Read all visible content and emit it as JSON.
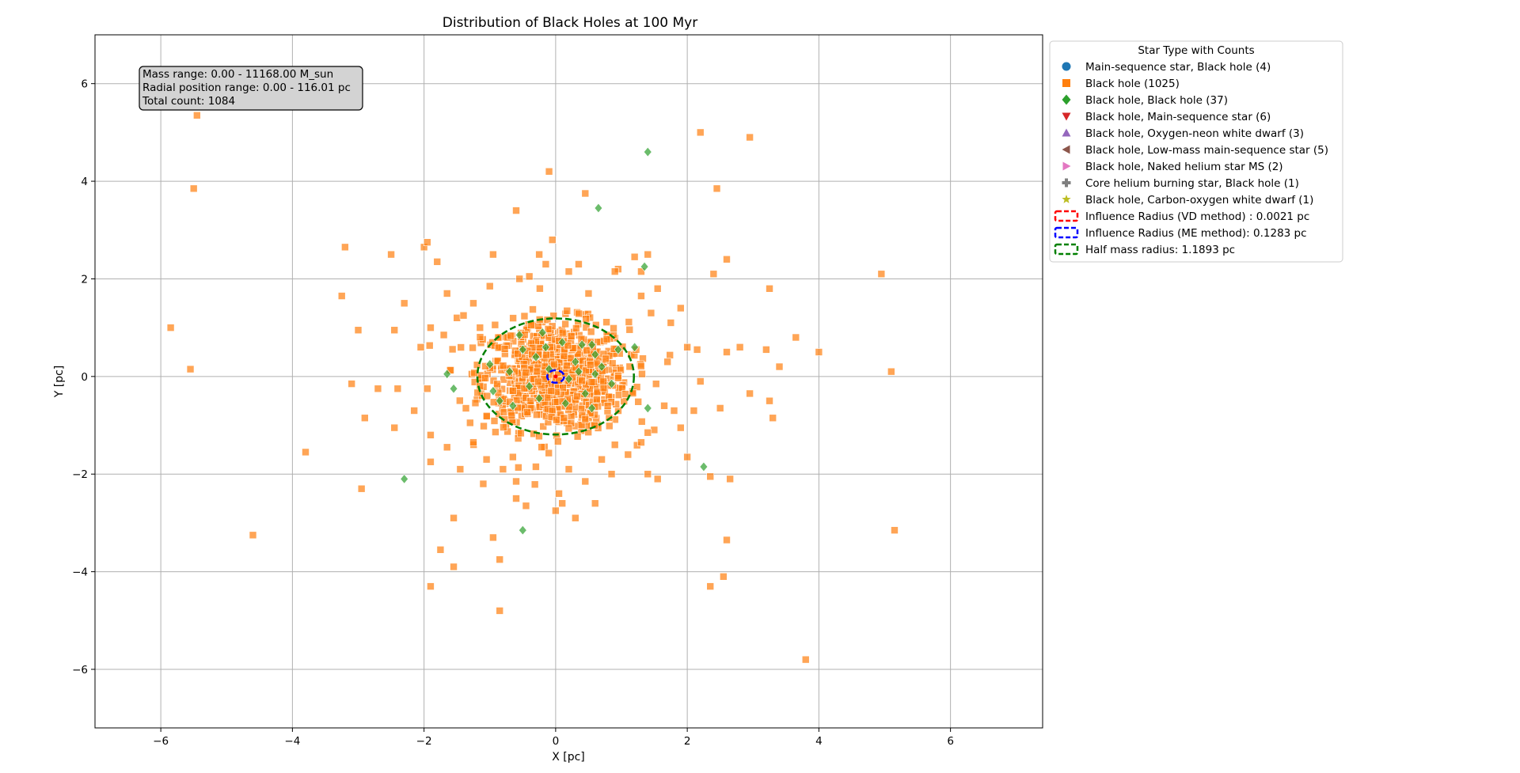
{
  "chart_data": {
    "type": "scatter",
    "title": "Distribution of Black Holes at 100 Myr",
    "xlabel": "X [pc]",
    "ylabel": "Y [pc]",
    "xlim": [
      -7.0,
      7.4
    ],
    "ylim": [
      -7.2,
      7.0
    ],
    "xticks": [
      -6,
      -4,
      -2,
      0,
      2,
      4,
      6
    ],
    "yticks": [
      -6,
      -4,
      -2,
      0,
      2,
      4,
      6
    ],
    "xtick_labels": [
      "−6",
      "−4",
      "−2",
      "0",
      "2",
      "4",
      "6"
    ],
    "ytick_labels": [
      "−6",
      "−4",
      "−2",
      "0",
      "2",
      "4",
      "6"
    ],
    "grid": true,
    "annotation": {
      "lines": [
        "Mass range: 0.00 - 11168.00 M_sun",
        "Radial position range: 0.00 - 116.01 pc",
        "Total count: 1084"
      ]
    },
    "legend": {
      "title": "Star Type with Counts",
      "placement": "outside upper right",
      "entries": [
        {
          "label": "Main-sequence star, Black hole (4)",
          "marker": "circle",
          "color": "#1f77b4"
        },
        {
          "label": "Black hole (1025)",
          "marker": "square",
          "color": "#ff7f0e"
        },
        {
          "label": "Black hole, Black hole (37)",
          "marker": "diamond",
          "color": "#2ca02c"
        },
        {
          "label": "Black hole, Main-sequence star (6)",
          "marker": "triangle-down",
          "color": "#d62728"
        },
        {
          "label": "Black hole, Oxygen-neon white dwarf (3)",
          "marker": "triangle-up",
          "color": "#9467bd"
        },
        {
          "label": "Black hole, Low-mass main-sequence star (5)",
          "marker": "triangle-left",
          "color": "#8c564b"
        },
        {
          "label": "Black hole, Naked helium star MS (2)",
          "marker": "triangle-right",
          "color": "#e377c2"
        },
        {
          "label": "Core helium burning star, Black hole (1)",
          "marker": "plus",
          "color": "#7f7f7f"
        },
        {
          "label": "Black hole, Carbon-oxygen white dwarf (1)",
          "marker": "star",
          "color": "#bcbd22"
        },
        {
          "label": "Influence Radius (VD method) : 0.0021 pc",
          "marker": "dashed-box",
          "color": "#ff0000"
        },
        {
          "label": "Influence Radius (ME method): 0.1283 pc",
          "marker": "dashed-box",
          "color": "#0000ff"
        },
        {
          "label": "Half mass radius: 1.1893 pc",
          "marker": "dashed-box",
          "color": "#008000"
        }
      ]
    },
    "circles": [
      {
        "name": "Influence Radius (VD method)",
        "radius": 0.0021,
        "color": "#ff0000"
      },
      {
        "name": "Influence Radius (ME method)",
        "radius": 0.1283,
        "color": "#0000ff"
      },
      {
        "name": "Half mass radius",
        "radius": 1.1893,
        "color": "#008000"
      }
    ],
    "series": [
      {
        "name": "Black hole (1025)",
        "marker": "square",
        "color": "#ff7f0e",
        "cluster": {
          "count": 900,
          "sigma_x": 0.55,
          "sigma_y": 0.55
        },
        "points": [
          [
            -5.45,
            5.35
          ],
          [
            -5.5,
            3.85
          ],
          [
            -5.85,
            1.0
          ],
          [
            -5.55,
            0.15
          ],
          [
            -4.6,
            -3.25
          ],
          [
            -3.8,
            -1.55
          ],
          [
            -3.2,
            2.65
          ],
          [
            -3.25,
            1.65
          ],
          [
            -3.0,
            0.95
          ],
          [
            -3.1,
            -0.15
          ],
          [
            -2.95,
            -2.3
          ],
          [
            -2.9,
            -0.85
          ],
          [
            -2.5,
            2.5
          ],
          [
            -2.45,
            0.95
          ],
          [
            -2.3,
            1.5
          ],
          [
            -2.7,
            -0.25
          ],
          [
            -2.4,
            -0.25
          ],
          [
            -2.45,
            -1.05
          ],
          [
            -2.0,
            2.65
          ],
          [
            -1.95,
            2.75
          ],
          [
            -1.8,
            2.35
          ],
          [
            -1.65,
            1.7
          ],
          [
            -1.5,
            1.2
          ],
          [
            -1.9,
            1.0
          ],
          [
            -1.7,
            0.85
          ],
          [
            -2.05,
            0.6
          ],
          [
            -1.95,
            -0.25
          ],
          [
            -2.15,
            -0.7
          ],
          [
            -1.9,
            -1.2
          ],
          [
            -1.9,
            -1.75
          ],
          [
            -1.65,
            -1.45
          ],
          [
            -1.75,
            -3.55
          ],
          [
            -1.55,
            -3.9
          ],
          [
            -1.9,
            -4.3
          ],
          [
            -1.55,
            -2.9
          ],
          [
            -1.45,
            -1.9
          ],
          [
            -1.1,
            -2.2
          ],
          [
            -0.95,
            -3.3
          ],
          [
            -0.85,
            -3.75
          ],
          [
            -0.85,
            -4.8
          ],
          [
            -0.6,
            -2.15
          ],
          [
            -0.6,
            -2.5
          ],
          [
            -0.45,
            -2.65
          ],
          [
            -0.3,
            -1.85
          ],
          [
            0.05,
            -2.4
          ],
          [
            0.1,
            -2.6
          ],
          [
            0.0,
            -2.75
          ],
          [
            0.3,
            -2.9
          ],
          [
            0.6,
            -2.6
          ],
          [
            0.45,
            -2.15
          ],
          [
            0.85,
            -2.0
          ],
          [
            1.4,
            -2.0
          ],
          [
            1.55,
            -2.1
          ],
          [
            2.0,
            -1.65
          ],
          [
            2.35,
            -2.05
          ],
          [
            2.65,
            -2.1
          ],
          [
            2.6,
            -3.35
          ],
          [
            2.55,
            -4.1
          ],
          [
            2.35,
            -4.3
          ],
          [
            3.8,
            -5.8
          ],
          [
            5.15,
            -3.15
          ],
          [
            5.1,
            0.1
          ],
          [
            4.95,
            2.1
          ],
          [
            4.0,
            0.5
          ],
          [
            3.65,
            0.8
          ],
          [
            3.4,
            0.2
          ],
          [
            3.25,
            1.8
          ],
          [
            3.2,
            0.55
          ],
          [
            3.25,
            -0.5
          ],
          [
            3.3,
            -0.85
          ],
          [
            2.95,
            -0.35
          ],
          [
            2.8,
            0.6
          ],
          [
            2.6,
            0.5
          ],
          [
            2.6,
            2.4
          ],
          [
            2.4,
            2.1
          ],
          [
            2.2,
            5.0
          ],
          [
            2.95,
            4.9
          ],
          [
            2.45,
            3.85
          ],
          [
            0.45,
            3.75
          ],
          [
            -0.1,
            4.2
          ],
          [
            -0.6,
            3.4
          ],
          [
            -0.05,
            2.8
          ],
          [
            0.2,
            2.15
          ],
          [
            0.35,
            2.3
          ],
          [
            -0.25,
            2.5
          ],
          [
            -0.15,
            2.3
          ],
          [
            -0.95,
            2.5
          ],
          [
            -1.0,
            1.85
          ],
          [
            -0.55,
            2.0
          ],
          [
            -0.4,
            2.05
          ],
          [
            1.2,
            2.45
          ],
          [
            1.4,
            2.5
          ],
          [
            1.3,
            2.15
          ],
          [
            0.95,
            2.2
          ],
          [
            0.9,
            2.15
          ],
          [
            1.45,
            1.3
          ],
          [
            1.55,
            1.8
          ],
          [
            1.75,
            1.1
          ],
          [
            1.3,
            1.65
          ],
          [
            1.9,
            1.4
          ],
          [
            2.0,
            0.6
          ],
          [
            2.15,
            0.55
          ],
          [
            2.2,
            -0.1
          ],
          [
            2.1,
            -0.7
          ],
          [
            2.5,
            -0.65
          ],
          [
            1.8,
            -0.7
          ],
          [
            1.9,
            -1.05
          ],
          [
            1.65,
            -0.6
          ],
          [
            1.7,
            0.3
          ],
          [
            0.5,
            1.7
          ],
          [
            -1.25,
            1.5
          ],
          [
            -1.4,
            1.25
          ],
          [
            -1.15,
            1.0
          ],
          [
            -1.3,
            -0.95
          ],
          [
            -1.25,
            -1.35
          ],
          [
            -1.05,
            -1.7
          ],
          [
            -0.8,
            -1.9
          ],
          [
            -0.65,
            -1.65
          ],
          [
            0.2,
            -1.9
          ],
          [
            0.7,
            -1.7
          ],
          [
            1.1,
            -1.6
          ],
          [
            1.3,
            -1.35
          ],
          [
            0.9,
            -1.4
          ],
          [
            1.4,
            -1.15
          ]
        ]
      },
      {
        "name": "Black hole, Black hole (37)",
        "marker": "diamond",
        "color": "#2ca02c",
        "points": [
          [
            1.4,
            4.6
          ],
          [
            0.65,
            3.45
          ],
          [
            1.35,
            2.25
          ],
          [
            -2.3,
            -2.1
          ],
          [
            -0.5,
            -3.15
          ],
          [
            2.25,
            -1.85
          ],
          [
            1.4,
            -0.65
          ],
          [
            1.2,
            0.6
          ],
          [
            0.6,
            0.45
          ],
          [
            0.55,
            0.65
          ],
          [
            0.7,
            0.2
          ],
          [
            0.4,
            0.65
          ],
          [
            -0.15,
            0.6
          ],
          [
            -0.55,
            0.85
          ],
          [
            -1.65,
            0.05
          ],
          [
            -1.55,
            -0.25
          ],
          [
            -0.85,
            -0.5
          ],
          [
            -0.65,
            -0.6
          ],
          [
            0.2,
            -0.05
          ],
          [
            0.6,
            0.05
          ],
          [
            0.3,
            0.3
          ],
          [
            -0.3,
            0.4
          ],
          [
            0.1,
            0.7
          ],
          [
            -0.4,
            -0.2
          ],
          [
            0.45,
            -0.35
          ],
          [
            0.85,
            -0.15
          ],
          [
            -0.7,
            0.1
          ],
          [
            -1.0,
            0.25
          ],
          [
            -0.2,
            0.9
          ],
          [
            0.95,
            0.55
          ],
          [
            -0.95,
            -0.3
          ],
          [
            0.15,
            -0.55
          ],
          [
            -0.5,
            0.55
          ],
          [
            0.55,
            -0.65
          ],
          [
            -0.1,
            0.15
          ],
          [
            0.35,
            0.1
          ],
          [
            -0.25,
            -0.45
          ]
        ]
      }
    ]
  }
}
